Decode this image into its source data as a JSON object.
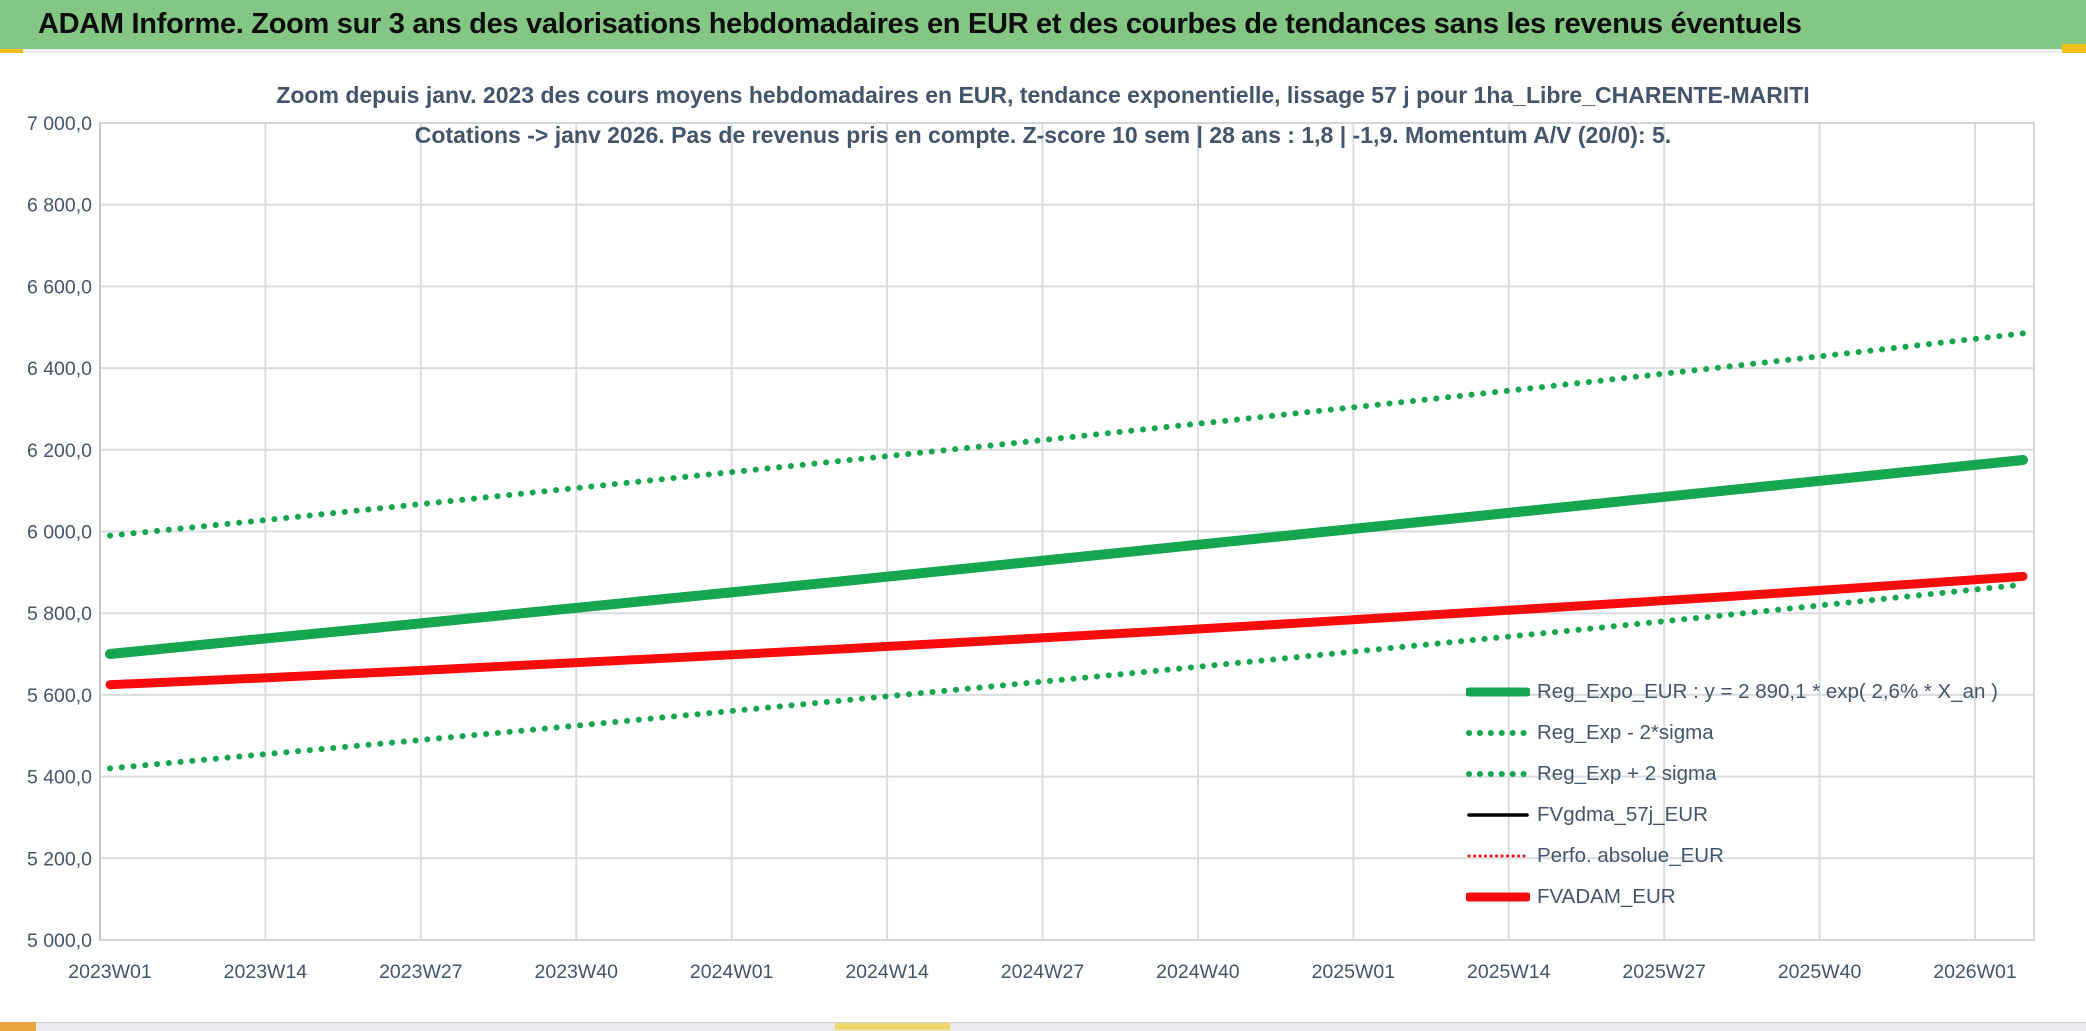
{
  "header": {
    "title": "ADAM Informe. Zoom sur 3 ans des valorisations hebdomadaires en EUR et des courbes de tendances sans les revenus éventuels"
  },
  "chart": {
    "title_line1": "Zoom depuis janv. 2023 des cours moyens hebdomadaires en EUR, tendance exponentielle, lissage 57 j pour 1ha_Libre_CHARENTE-MARITI",
    "title_line2": "Cotations -> janv 2026. Pas de revenus pris en compte. Z-score 10 sem | 28 ans : 1,8 | -1,9. Momentum A/V (20/0): 5."
  },
  "chart_data": {
    "type": "line",
    "title": "Zoom depuis janv. 2023 des cours moyens hebdomadaires en EUR, tendance exponentielle, lissage 57 j pour 1ha_Libre_CHARENTE-MARITI Cotations -> janv 2026. Pas de revenus pris en compte. Z-score 10 sem | 28 ans : 1,8 | -1,9. Momentum A/V (20/0): 5.",
    "x_tick_labels": [
      "2023W01",
      "2023W14",
      "2023W27",
      "2023W40",
      "2024W01",
      "2024W14",
      "2024W27",
      "2024W40",
      "2025W01",
      "2025W14",
      "2025W27",
      "2025W40",
      "2026W01"
    ],
    "y_tick_labels": [
      "5 000,0",
      "5 200,0",
      "5 400,0",
      "5 600,0",
      "5 800,0",
      "6 000,0",
      "6 200,0",
      "6 400,0",
      "6 600,0",
      "6 800,0",
      "7 000,0"
    ],
    "ylim": [
      5000,
      7000
    ],
    "y_tick_step": 200,
    "grid": true,
    "legend_position": "inside-right",
    "series": [
      {
        "key": "reg-expo-eur",
        "name": "Reg_Expo_EUR : y = 2 890,1 * exp( 2,6% *  X_an )",
        "color": "#17A650",
        "style": "solid",
        "width": 10,
        "values": [
          5700,
          5736,
          5771,
          5807,
          5843,
          5879,
          5916,
          5953,
          5990,
          6027,
          6064,
          6101,
          6138,
          6175
        ]
      },
      {
        "key": "reg-exp-minus-2sigma",
        "name": "Reg_Exp - 2*sigma",
        "color": "#17A650",
        "style": "dotted",
        "width": 6,
        "values": [
          5420,
          5453,
          5486,
          5519,
          5553,
          5587,
          5621,
          5655,
          5690,
          5725,
          5760,
          5796,
          5833,
          5870
        ]
      },
      {
        "key": "reg-exp-plus-2sigma",
        "name": "Reg_Exp + 2 sigma",
        "color": "#17A650",
        "style": "dotted",
        "width": 6,
        "values": [
          5990,
          6026,
          6063,
          6100,
          6137,
          6174,
          6211,
          6249,
          6287,
          6325,
          6364,
          6404,
          6444,
          6485
        ]
      },
      {
        "key": "fvgdma-57j-eur",
        "name": "FVgdma_57j_EUR",
        "color": "#000000",
        "style": "solid",
        "width": 3.5,
        "values": [
          5622,
          5640,
          5659,
          5678,
          5698,
          5718,
          5738,
          5758,
          5778,
          5799,
          5820,
          5842,
          5863,
          5884
        ]
      },
      {
        "key": "perfo-absolue-eur",
        "name": "Perfo. absolue_EUR",
        "color": "#FA0B0B",
        "style": "dotted",
        "width": 3,
        "values": [
          5624,
          5641,
          5658,
          5676,
          5694,
          5712,
          5732,
          5752,
          5773,
          5794,
          5816,
          5839,
          5863,
          5888
        ]
      },
      {
        "key": "fvadam-eur",
        "name": "FVADAM_EUR",
        "color": "#FA0B0B",
        "style": "solid",
        "width": 9,
        "values": [
          5625,
          5641,
          5658,
          5676,
          5694,
          5713,
          5733,
          5753,
          5774,
          5796,
          5818,
          5841,
          5865,
          5890
        ]
      }
    ]
  },
  "colors": {
    "header_bg": "#84C784",
    "accent_gold": "#F2C21C",
    "text_blue_gray": "#44546A",
    "gridline": "#D9DCE0",
    "green_line": "#17A650",
    "red_line": "#FA0B0B"
  }
}
